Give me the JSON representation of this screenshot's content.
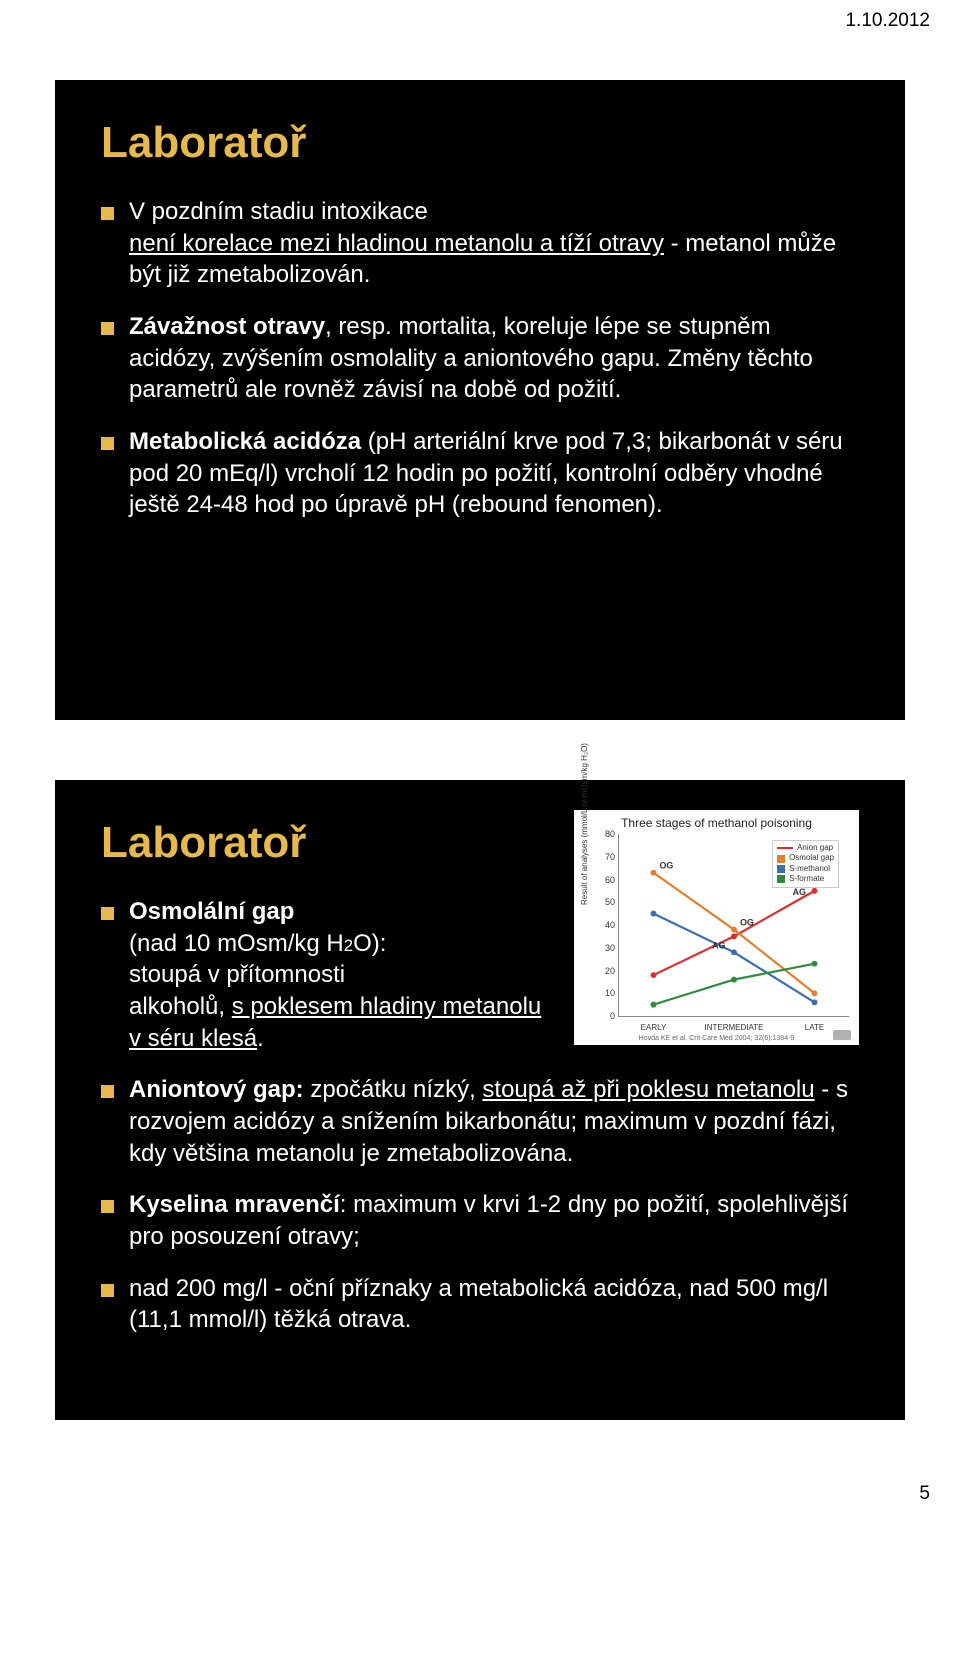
{
  "page": {
    "date": "1.10.2012",
    "number": "5"
  },
  "slide1": {
    "title": "Laboratoř",
    "b1_line1": "V pozdním stadiu intoxikace",
    "b1_line2": "není korelace mezi hladinou metanolu a tíží otravy",
    "b1_line3": " - metanol může být již zmetabolizován.",
    "b2_pre": "",
    "b2_bold": "Závažnost otravy",
    "b2_rest": ", resp. mortalita, koreluje lépe se stupněm acidózy, zvýšením osmolality a aniontového gapu. Změny těchto parametrů ale rovněž závisí na době od požití.",
    "b3_bold": "Metabolická acidóza",
    "b3_rest": " (pH arteriální krve pod 7,3; bikarbonát v séru pod 20 mEq/l) vrcholí 12 hodin po požití, kontrolní odběry vhodné ještě 24-48 hod po úpravě pH (rebound fenomen)."
  },
  "slide2": {
    "title": "Laboratoř",
    "b1_bold": "Osmolální gap",
    "b1_line2a": "(nad 10 mOsm/kg H",
    "b1_sub": "2",
    "b1_line2b": "O):",
    "b1_line3": "stoupá v přítomnosti",
    "b1_line4a": "alkoholů, ",
    "b1_line4u": "s poklesem hladiny metanolu v séru klesá",
    "b1_line4b": ".",
    "b2_bold": "Aniontový gap:",
    "b2_a": " zpočátku nízký, ",
    "b2_u": "stoupá až při poklesu metanolu",
    "b2_b": " - s rozvojem acidózy a snížením bikarbonátu; maximum v pozdní fázi, kdy většina metanolu je zmetabolizována.",
    "b3_bold": "Kyselina mravenčí",
    "b3_rest": ": maximum v krvi 1-2 dny po požití, spolehlivější pro posouzení otravy;",
    "b4": "nad 200 mg/l - oční příznaky a metabolická acidóza, nad 500 mg/l (11,1 mmol/l) těžká otrava.",
    "chart": {
      "title": "Three stages of methanol poisoning",
      "ylabel": "Result of analyses (mmol/L or mOsm/kg H₂O)",
      "caption": "Hovda KE et al. Crit Care Med 2004; 32(6):1384-9",
      "ylim": [
        0,
        80
      ],
      "ytick_step": 10,
      "xcats": [
        "EARLY",
        "INTERMEDIATE",
        "LATE"
      ],
      "legend": [
        {
          "label": "Anion gap",
          "color": "#d93030",
          "type": "line"
        },
        {
          "label": "Osmolal gap",
          "color": "#e08030",
          "type": "sq"
        },
        {
          "label": "S-methanol",
          "color": "#3a6fb0",
          "type": "sq"
        },
        {
          "label": "S-formate",
          "color": "#2e8b3e",
          "type": "sq"
        }
      ],
      "series": {
        "anion_gap": {
          "color": "#d93030",
          "values": [
            18,
            35,
            55
          ]
        },
        "osmolal_gap": {
          "color": "#e08030",
          "values": [
            63,
            38,
            10
          ]
        },
        "s_methanol": {
          "color": "#3a6fb0",
          "values": [
            45,
            28,
            6
          ]
        },
        "s_formate": {
          "color": "#2e8b3e",
          "values": [
            5,
            16,
            23
          ]
        }
      },
      "markers_og": [
        "OG",
        "OG"
      ],
      "markers_ag": [
        "AG",
        "AG"
      ],
      "background_color": "#ffffff"
    }
  }
}
